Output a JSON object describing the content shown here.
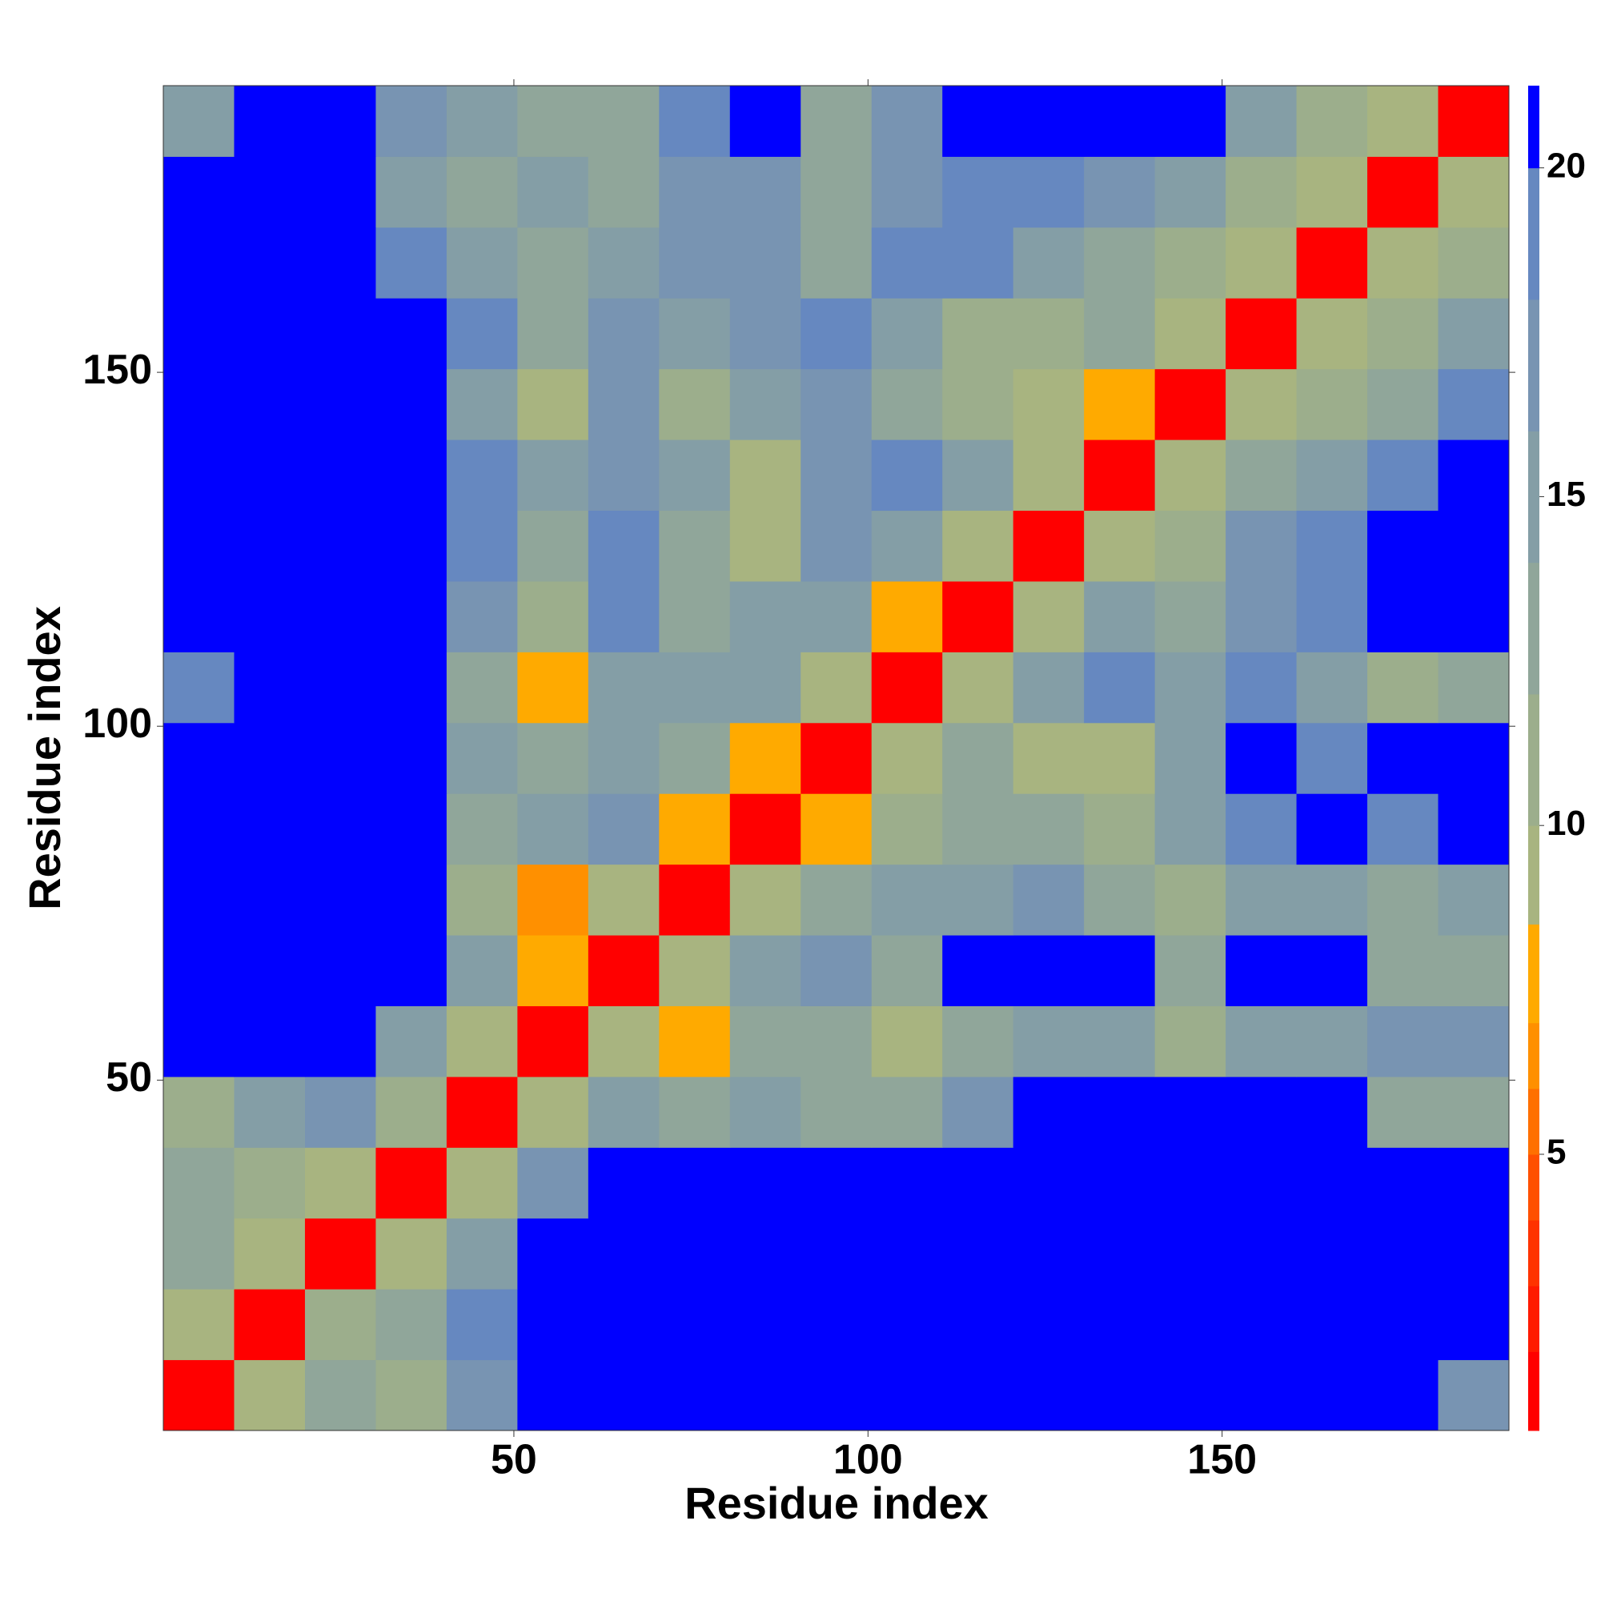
{
  "chart_data": {
    "type": "heatmap",
    "xlabel": "Residue index",
    "ylabel": "Residue index",
    "x": [
      5.5,
      15.5,
      25.5,
      35.5,
      45.5,
      55.5,
      65.5,
      75.5,
      85.5,
      95.5,
      105.5,
      115.5,
      125.5,
      135.5,
      145.5,
      155.5,
      165.5,
      175.5,
      185.5
    ],
    "y": [
      5.5,
      15.5,
      25.5,
      35.5,
      45.5,
      55.5,
      65.5,
      75.5,
      85.5,
      95.5,
      105.5,
      115.5,
      125.5,
      135.5,
      145.5,
      155.5,
      165.5,
      175.5,
      185.5
    ],
    "z": [
      [
        2,
        10,
        14,
        12,
        18,
        21,
        21,
        21,
        21,
        21,
        21,
        21,
        21,
        21,
        21,
        21,
        21,
        21,
        18
      ],
      [
        10,
        2,
        12,
        14,
        20,
        21,
        21,
        21,
        21,
        21,
        21,
        21,
        21,
        21,
        21,
        21,
        21,
        21,
        21
      ],
      [
        13,
        10,
        2,
        9,
        16,
        21,
        21,
        21,
        21,
        21,
        21,
        21,
        21,
        21,
        21,
        21,
        21,
        21,
        21
      ],
      [
        14,
        12,
        9,
        2,
        10,
        18,
        21,
        21,
        21,
        21,
        21,
        21,
        21,
        21,
        21,
        21,
        21,
        21,
        21
      ],
      [
        12,
        15,
        18,
        12,
        2,
        10,
        15,
        14,
        15,
        14,
        13,
        17,
        21,
        21,
        21,
        21,
        21,
        14,
        13
      ],
      [
        21,
        21,
        21,
        16,
        10,
        2,
        10,
        8,
        14,
        14,
        9,
        14,
        15,
        16,
        12,
        15,
        15,
        17,
        17
      ],
      [
        21,
        21,
        21,
        21,
        15,
        8,
        2,
        9,
        16,
        17,
        14,
        21,
        21,
        21,
        14,
        21,
        21,
        13,
        14
      ],
      [
        21,
        21,
        21,
        21,
        12,
        7,
        9,
        2,
        9,
        14,
        15,
        16,
        18,
        14,
        11,
        16,
        15,
        14,
        15
      ],
      [
        21,
        21,
        21,
        21,
        14,
        16,
        17,
        8,
        2,
        8,
        12,
        13,
        13,
        12,
        15,
        20,
        21,
        20,
        21
      ],
      [
        21,
        21,
        21,
        21,
        15,
        14,
        16,
        14,
        8,
        2,
        10,
        14,
        10,
        9,
        15,
        21,
        20,
        21,
        21
      ],
      [
        19,
        21,
        21,
        21,
        13,
        8,
        16,
        16,
        15,
        10,
        2,
        9,
        15,
        20,
        16,
        20,
        15,
        12,
        14
      ],
      [
        21,
        21,
        21,
        21,
        18,
        12,
        20,
        14,
        16,
        15,
        8,
        2,
        10,
        15,
        13,
        18,
        20,
        21,
        21
      ],
      [
        21,
        21,
        21,
        21,
        20,
        14,
        20,
        14,
        10,
        18,
        16,
        9,
        2,
        9,
        12,
        17,
        20,
        21,
        21
      ],
      [
        21,
        21,
        21,
        21,
        20,
        15,
        18,
        15,
        10,
        17,
        20,
        16,
        9,
        2,
        9,
        13,
        16,
        19,
        21
      ],
      [
        21,
        21,
        21,
        21,
        16,
        10,
        17,
        11,
        15,
        18,
        14,
        11,
        10,
        8,
        2,
        10,
        11,
        14,
        20
      ],
      [
        21,
        21,
        21,
        21,
        19,
        13,
        17,
        15,
        18,
        20,
        16,
        12,
        12,
        14,
        9,
        2,
        9,
        12,
        16
      ],
      [
        21,
        21,
        21,
        20,
        16,
        14,
        16,
        18,
        18,
        14,
        20,
        20,
        16,
        14,
        11,
        9,
        2,
        9,
        12
      ],
      [
        21,
        21,
        21,
        16,
        14,
        15,
        14,
        18,
        17,
        13,
        17,
        20,
        20,
        18,
        15,
        12,
        9,
        2,
        9
      ],
      [
        16,
        21,
        21,
        18,
        15,
        14,
        14,
        19,
        21,
        14,
        18,
        21,
        21,
        21,
        21,
        15,
        11,
        9,
        2
      ]
    ],
    "xlim": [
      0.5,
      190.5
    ],
    "ylim": [
      0.5,
      190.5
    ],
    "xticks": [
      50,
      100,
      150
    ],
    "yticks": [
      50,
      100,
      150
    ],
    "zlim": [
      0.8,
      21.25
    ],
    "zticks": [
      5,
      10,
      15,
      20
    ],
    "colorscale": [
      {
        "max": 2,
        "color": "#ff0000"
      },
      {
        "max": 3,
        "color": "#ff1a00"
      },
      {
        "max": 4,
        "color": "#ff3300"
      },
      {
        "max": 5,
        "color": "#ff5000"
      },
      {
        "max": 6,
        "color": "#ff7000"
      },
      {
        "max": 7,
        "color": "#ff9000"
      },
      {
        "max": 8.5,
        "color": "#ffaa00"
      },
      {
        "max": 10,
        "color": "#a8b480"
      },
      {
        "max": 12,
        "color": "#9cae8c"
      },
      {
        "max": 14,
        "color": "#90a69a"
      },
      {
        "max": 16,
        "color": "#849ea6"
      },
      {
        "max": 18,
        "color": "#7894b2"
      },
      {
        "max": 20,
        "color": "#6688c0"
      },
      {
        "max": 21.25,
        "color": "#0000ff"
      }
    ]
  }
}
